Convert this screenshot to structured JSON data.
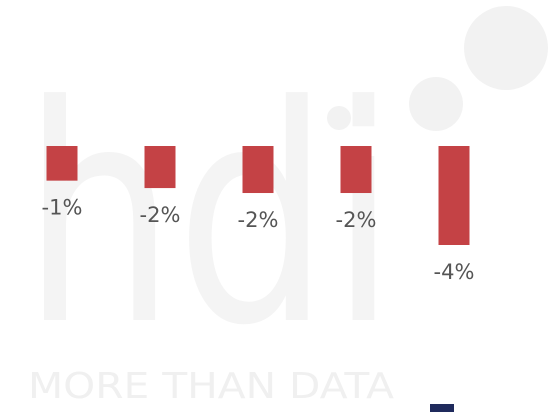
{
  "watermark": "hdi",
  "tagline": "MORE THAN DATA",
  "chart_data": {
    "type": "bar",
    "categories": [
      null,
      null,
      null,
      null,
      null
    ],
    "values": [
      -1.4,
      -1.7,
      -1.9,
      -1.9,
      -4.0
    ],
    "value_labels": [
      "-1%",
      "-2%",
      "-2%",
      "-2%",
      "-4%"
    ],
    "color": "#c44245"
  }
}
